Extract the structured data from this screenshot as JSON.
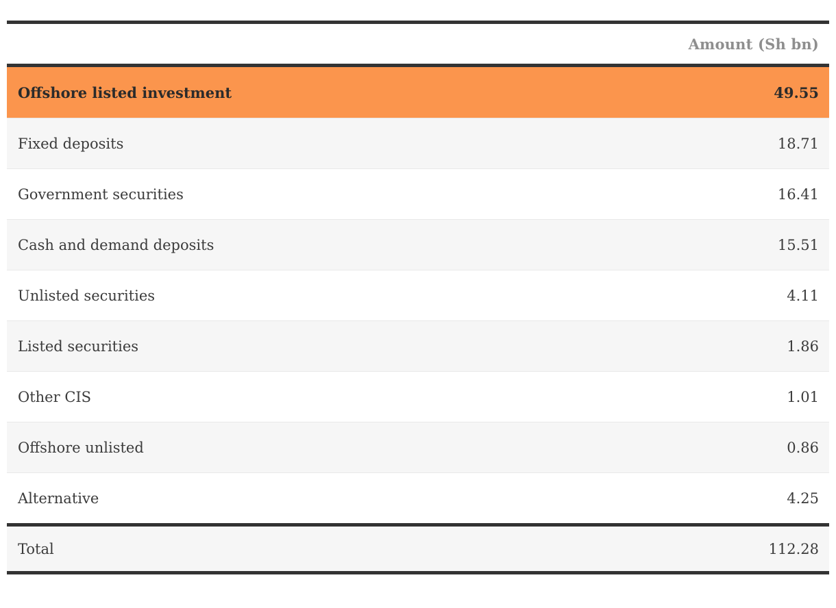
{
  "colors": {
    "rule": "#333333",
    "highlight_row_bg": "#fb954d",
    "alt_row_bg": "#f6f6f6",
    "header_text": "#8e8e8e",
    "body_text": "#3b3b3b"
  },
  "chart_data": {
    "type": "table",
    "title": "",
    "columns": [
      "",
      "Amount (Sh bn)"
    ],
    "header": {
      "amount_label": "Amount (Sh bn)"
    },
    "rows": [
      {
        "label": "Offshore listed investment",
        "value": "49.55",
        "highlighted": true
      },
      {
        "label": "Fixed deposits",
        "value": "18.71",
        "highlighted": false
      },
      {
        "label": "Government securities",
        "value": "16.41",
        "highlighted": false
      },
      {
        "label": "Cash and demand deposits",
        "value": "15.51",
        "highlighted": false
      },
      {
        "label": "Unlisted securities",
        "value": "4.11",
        "highlighted": false
      },
      {
        "label": "Listed securities",
        "value": "1.86",
        "highlighted": false
      },
      {
        "label": "Other CIS",
        "value": "1.01",
        "highlighted": false
      },
      {
        "label": "Offshore unlisted",
        "value": "0.86",
        "highlighted": false
      },
      {
        "label": "Alternative",
        "value": "4.25",
        "highlighted": false
      }
    ],
    "total": {
      "label": "Total",
      "value": "112.28"
    }
  }
}
